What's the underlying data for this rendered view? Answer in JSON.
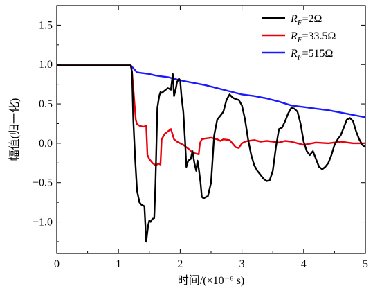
{
  "chart_data": {
    "type": "line",
    "xlabel": "时间/(×10⁻⁶ s)",
    "ylabel": "幅值(归一化)",
    "xlim": [
      0,
      5
    ],
    "ylim": [
      -1.4,
      1.75
    ],
    "xticks": [
      "0",
      "1",
      "2",
      "3",
      "4",
      "5"
    ],
    "yticks": [
      "1.5",
      "1.0",
      "0.5",
      "0.0",
      "−0.5",
      "−1.0"
    ],
    "ytick_values": [
      1.5,
      1.0,
      0.5,
      0.0,
      -0.5,
      -1.0
    ],
    "xtick_values": [
      0,
      1,
      2,
      3,
      4,
      5
    ],
    "grid": false,
    "legend_position": "top-right",
    "series": [
      {
        "name": "R_F=2Ω",
        "label_main": "R",
        "label_sub": "F",
        "label_rest": "=2Ω",
        "color": "#000000",
        "x": [
          0,
          0.5,
          1.0,
          1.2,
          1.22,
          1.24,
          1.27,
          1.3,
          1.34,
          1.37,
          1.42,
          1.45,
          1.48,
          1.5,
          1.52,
          1.55,
          1.58,
          1.6,
          1.63,
          1.66,
          1.68,
          1.7,
          1.72,
          1.75,
          1.8,
          1.85,
          1.88,
          1.9,
          1.93,
          1.95,
          1.98,
          2.0,
          2.02,
          2.05,
          2.08,
          2.1,
          2.13,
          2.17,
          2.2,
          2.23,
          2.26,
          2.28,
          2.3,
          2.33,
          2.35,
          2.38,
          2.4,
          2.45,
          2.5,
          2.55,
          2.6,
          2.65,
          2.7,
          2.75,
          2.8,
          2.85,
          2.9,
          2.95,
          3.0,
          3.05,
          3.1,
          3.15,
          3.2,
          3.25,
          3.3,
          3.35,
          3.4,
          3.45,
          3.5,
          3.55,
          3.6,
          3.65,
          3.7,
          3.75,
          3.8,
          3.85,
          3.9,
          3.95,
          4.0,
          4.05,
          4.1,
          4.15,
          4.2,
          4.25,
          4.3,
          4.35,
          4.4,
          4.45,
          4.5,
          4.55,
          4.6,
          4.65,
          4.7,
          4.75,
          4.8,
          4.85,
          4.9,
          4.95,
          5.0
        ],
        "y": [
          0.99,
          0.99,
          0.99,
          0.99,
          0.9,
          0.3,
          -0.2,
          -0.6,
          -0.75,
          -0.78,
          -0.8,
          -1.25,
          -1.05,
          -0.98,
          -1.0,
          -0.96,
          -0.95,
          -0.5,
          0.45,
          0.6,
          0.65,
          0.64,
          0.65,
          0.67,
          0.7,
          0.68,
          0.88,
          0.6,
          0.7,
          0.78,
          0.82,
          0.8,
          0.6,
          0.4,
          0.02,
          -0.3,
          -0.22,
          -0.2,
          -0.1,
          -0.25,
          -0.35,
          -0.22,
          -0.32,
          -0.5,
          -0.68,
          -0.7,
          -0.69,
          -0.67,
          -0.5,
          0.1,
          0.3,
          0.35,
          0.4,
          0.55,
          0.62,
          0.58,
          0.56,
          0.55,
          0.48,
          0.3,
          0.05,
          -0.15,
          -0.28,
          -0.35,
          -0.4,
          -0.45,
          -0.48,
          -0.47,
          -0.35,
          -0.05,
          0.18,
          0.2,
          0.28,
          0.38,
          0.45,
          0.44,
          0.4,
          0.25,
          0.02,
          -0.1,
          -0.15,
          -0.1,
          -0.2,
          -0.3,
          -0.33,
          -0.3,
          -0.25,
          -0.15,
          -0.02,
          0.05,
          0.1,
          0.2,
          0.3,
          0.32,
          0.28,
          0.15,
          0.05,
          -0.02,
          -0.05
        ]
      },
      {
        "name": "R_F=33.5Ω",
        "label_main": "R",
        "label_sub": "F",
        "label_rest": "=33.5Ω",
        "color": "#e8000b",
        "x": [
          0,
          0.5,
          1.0,
          1.2,
          1.22,
          1.25,
          1.28,
          1.3,
          1.35,
          1.4,
          1.45,
          1.47,
          1.5,
          1.55,
          1.6,
          1.65,
          1.68,
          1.7,
          1.75,
          1.8,
          1.85,
          1.9,
          1.95,
          2.0,
          2.05,
          2.1,
          2.15,
          2.2,
          2.25,
          2.3,
          2.32,
          2.35,
          2.4,
          2.5,
          2.6,
          2.65,
          2.7,
          2.8,
          2.9,
          2.95,
          3.0,
          3.05,
          3.1,
          3.2,
          3.3,
          3.4,
          3.5,
          3.6,
          3.7,
          3.8,
          3.9,
          4.0,
          4.2,
          4.4,
          4.6,
          4.8,
          5.0
        ],
        "y": [
          0.99,
          0.99,
          0.99,
          0.99,
          0.9,
          0.6,
          0.3,
          0.24,
          0.22,
          0.21,
          0.22,
          -0.15,
          -0.2,
          -0.25,
          -0.28,
          -0.26,
          -0.27,
          0.05,
          0.12,
          0.15,
          0.18,
          0.05,
          0.02,
          0.0,
          -0.02,
          -0.05,
          -0.08,
          -0.12,
          -0.13,
          -0.14,
          0.0,
          0.05,
          0.06,
          0.07,
          0.05,
          0.03,
          0.05,
          0.04,
          -0.05,
          -0.06,
          0.0,
          0.02,
          0.03,
          0.04,
          0.02,
          0.03,
          0.02,
          0.01,
          0.03,
          0.02,
          0.0,
          -0.02,
          0.01,
          0.0,
          0.02,
          0.0,
          0.0
        ]
      },
      {
        "name": "R_F=515Ω",
        "label_main": "R",
        "label_sub": "F",
        "label_rest": "=515Ω",
        "color": "#1a1aff",
        "x": [
          0,
          0.5,
          1.0,
          1.2,
          1.3,
          1.5,
          1.6,
          1.7,
          1.8,
          1.9,
          2.0,
          2.2,
          2.4,
          2.6,
          2.8,
          3.0,
          3.2,
          3.4,
          3.6,
          3.8,
          4.0,
          4.2,
          4.4,
          4.6,
          4.8,
          5.0
        ],
        "y": [
          0.99,
          0.99,
          0.99,
          0.99,
          0.9,
          0.88,
          0.86,
          0.85,
          0.84,
          0.82,
          0.8,
          0.77,
          0.74,
          0.7,
          0.66,
          0.62,
          0.6,
          0.57,
          0.53,
          0.48,
          0.46,
          0.44,
          0.42,
          0.39,
          0.36,
          0.33
        ]
      }
    ]
  }
}
